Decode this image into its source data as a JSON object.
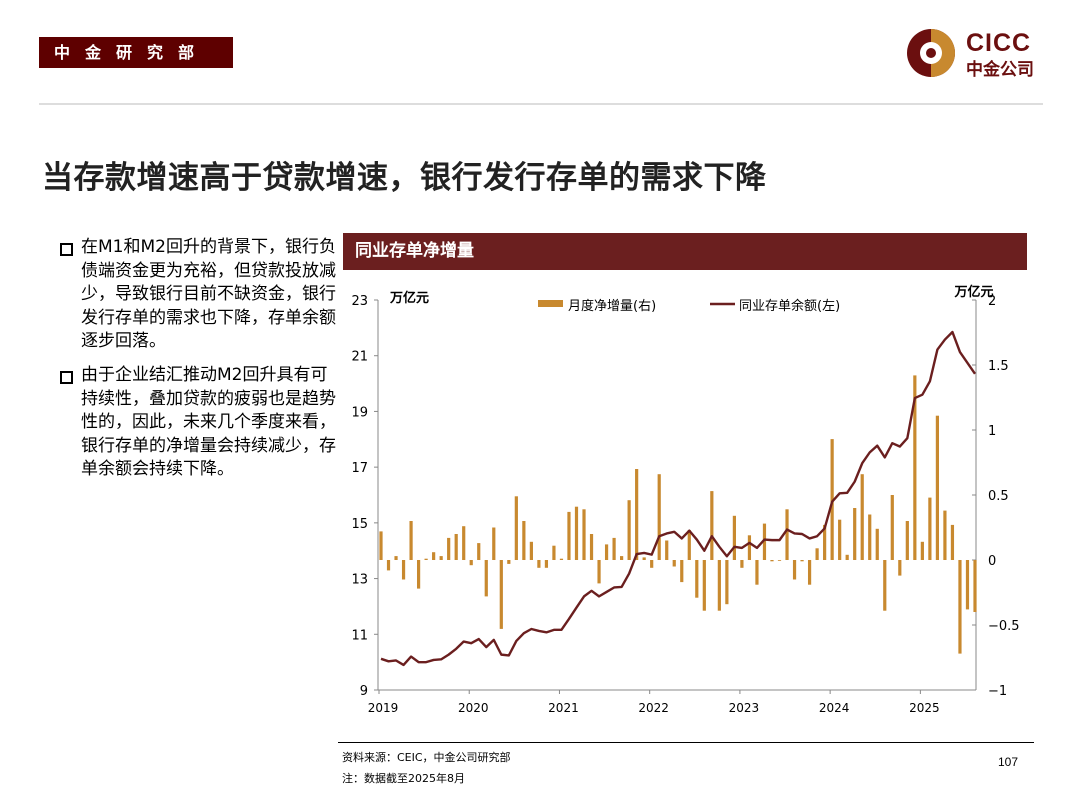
{
  "header": {
    "department": "中金研究部",
    "logo": {
      "en": "CICC",
      "zh": "中金公司"
    }
  },
  "slide_title": "当存款增速高于贷款增速，银行发行存单的需求下降",
  "bullets": [
    "在M1和M2回升的背景下，银行负债端资金更为充裕，但贷款投放减少，导致银行目前不缺资金，银行发行存单的需求也下降，存单余额逐步回落。",
    "由于企业结汇推动M2回升具有可持续性，叠加贷款的疲弱也是趋势性的，因此，未来几个季度来看，银行存单的净增量会持续减少，存单余额会持续下降。"
  ],
  "panel_title": "同业存单净增量",
  "chart_data": {
    "type": "bar+line",
    "x_range": [
      "2019-01",
      "2025-08"
    ],
    "x_ticks": [
      "2019",
      "2020",
      "2021",
      "2022",
      "2023",
      "2024",
      "2025"
    ],
    "y_left": {
      "unit": "万亿元",
      "range": [
        9,
        23
      ],
      "ticks": [
        "9",
        "11",
        "13",
        "15",
        "17",
        "19",
        "21",
        "23"
      ]
    },
    "y_right": {
      "unit": "万亿元",
      "range": [
        -1,
        2
      ],
      "ticks": [
        "−1",
        "−0.5",
        "0",
        "0.5",
        "1",
        "1.5",
        "2"
      ]
    },
    "legend_position": "top",
    "series": [
      {
        "name": "月度净增量(右)",
        "type": "bar",
        "axis": "right",
        "color": "#c8892f",
        "values": [
          0.22,
          -0.08,
          0.03,
          -0.15,
          0.3,
          -0.22,
          0.01,
          0.06,
          0.03,
          0.17,
          0.2,
          0.26,
          -0.04,
          0.13,
          -0.28,
          0.25,
          -0.53,
          -0.03,
          0.49,
          0.3,
          0.14,
          -0.06,
          -0.06,
          0.11,
          0.01,
          0.37,
          0.41,
          0.39,
          0.2,
          -0.18,
          0.12,
          0.17,
          0.03,
          0.46,
          0.7,
          0.02,
          -0.06,
          0.66,
          0.15,
          -0.05,
          -0.17,
          0.23,
          -0.29,
          -0.39,
          0.53,
          -0.39,
          -0.34,
          0.34,
          -0.06,
          0.19,
          -0.19,
          0.28,
          -0.01,
          0.0,
          0.39,
          -0.15,
          -0.01,
          -0.19,
          0.09,
          0.27,
          0.93,
          0.31,
          0.04,
          0.4,
          0.66,
          0.35,
          0.24,
          -0.39,
          0.5,
          -0.12,
          0.3,
          1.42,
          0.14,
          0.48,
          1.11,
          0.38,
          0.27,
          -0.72,
          -0.38,
          -0.4
        ]
      },
      {
        "name": "同业存单余额(左)",
        "type": "line",
        "axis": "left",
        "color": "#6b1f1f",
        "values": [
          10.12,
          10.03,
          10.06,
          9.9,
          10.2,
          10.0,
          10.0,
          10.08,
          10.1,
          10.27,
          10.48,
          10.74,
          10.68,
          10.83,
          10.54,
          10.8,
          10.27,
          10.24,
          10.76,
          11.04,
          11.19,
          11.12,
          11.07,
          11.16,
          11.16,
          11.55,
          11.96,
          12.36,
          12.56,
          12.36,
          12.52,
          12.68,
          12.7,
          13.18,
          13.88,
          13.92,
          13.86,
          14.52,
          14.62,
          14.68,
          14.44,
          14.72,
          14.4,
          14.0,
          14.52,
          14.14,
          13.8,
          14.14,
          14.1,
          14.28,
          14.1,
          14.4,
          14.38,
          14.38,
          14.76,
          14.62,
          14.6,
          14.44,
          14.52,
          14.8,
          15.76,
          16.06,
          16.08,
          16.48,
          17.14,
          17.53,
          17.77,
          17.35,
          17.86,
          17.74,
          18.04,
          19.48,
          19.6,
          20.08,
          21.22,
          21.58,
          21.85,
          21.13,
          20.74,
          20.35
        ]
      }
    ]
  },
  "footer": {
    "source": "资料来源：CEIC，中金公司研究部",
    "note": "注：数据截至2025年8月",
    "page": "107"
  }
}
